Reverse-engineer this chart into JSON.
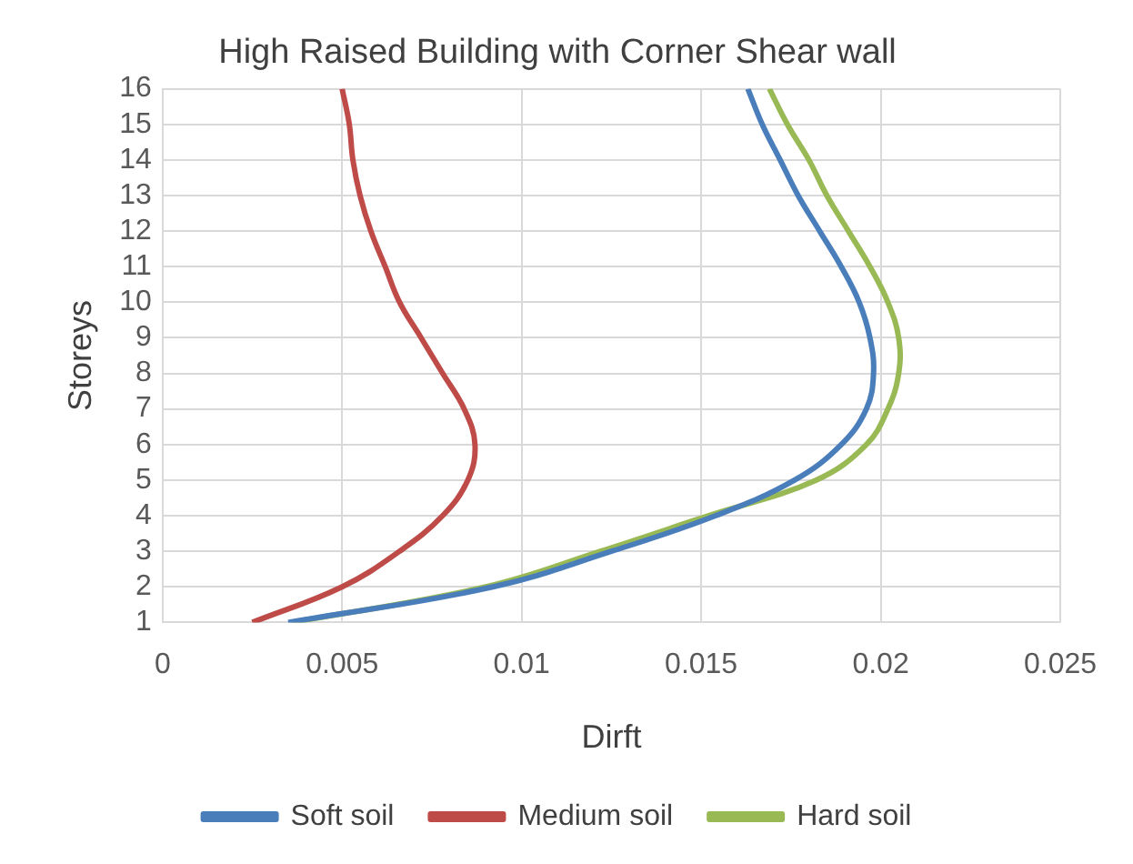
{
  "chart_data": {
    "type": "line",
    "title": "High Raised Building with Corner Shear wall",
    "xlabel": "Dirft",
    "ylabel": "Storeys",
    "xlim": [
      0,
      0.025
    ],
    "xticks": [
      0,
      0.005,
      0.01,
      0.015,
      0.02,
      0.025
    ],
    "ylim": [
      1,
      16
    ],
    "yticks": [
      1,
      2,
      3,
      4,
      5,
      6,
      7,
      8,
      9,
      10,
      11,
      12,
      13,
      14,
      15,
      16
    ],
    "grid": true,
    "legend": "bottom",
    "marker": "none",
    "line_style": "solid",
    "series": [
      {
        "name": "Soft soil",
        "color": "#4a7ebb",
        "x": [
          0.0035,
          0.0092,
          0.0125,
          0.0154,
          0.0176,
          0.0189,
          0.0196,
          0.0198,
          0.0197,
          0.0194,
          0.0189,
          0.0183,
          0.0177,
          0.0172,
          0.0167,
          0.0163
        ],
        "values": [
          1,
          2,
          3,
          4,
          5,
          6,
          7,
          8,
          9,
          10,
          11,
          12,
          13,
          14,
          15,
          16
        ]
      },
      {
        "name": "Medium soil",
        "color": "#be4b48",
        "x": [
          0.0025,
          0.005,
          0.0066,
          0.0078,
          0.0085,
          0.0087,
          0.0084,
          0.0078,
          0.0072,
          0.0066,
          0.0062,
          0.0058,
          0.0055,
          0.0053,
          0.0052,
          0.005
        ],
        "values": [
          1,
          2,
          3,
          4,
          5,
          6,
          7,
          8,
          9,
          10,
          11,
          12,
          13,
          14,
          15,
          16
        ]
      },
      {
        "name": "Hard soil",
        "color": "#98b954",
        "x": [
          0.0036,
          0.009,
          0.0122,
          0.0152,
          0.0182,
          0.0196,
          0.0202,
          0.0205,
          0.0205,
          0.0202,
          0.0197,
          0.0191,
          0.0185,
          0.018,
          0.0174,
          0.0169
        ],
        "values": [
          1,
          2,
          3,
          4,
          5,
          6,
          7,
          8,
          9,
          10,
          11,
          12,
          13,
          14,
          15,
          16
        ]
      }
    ]
  }
}
